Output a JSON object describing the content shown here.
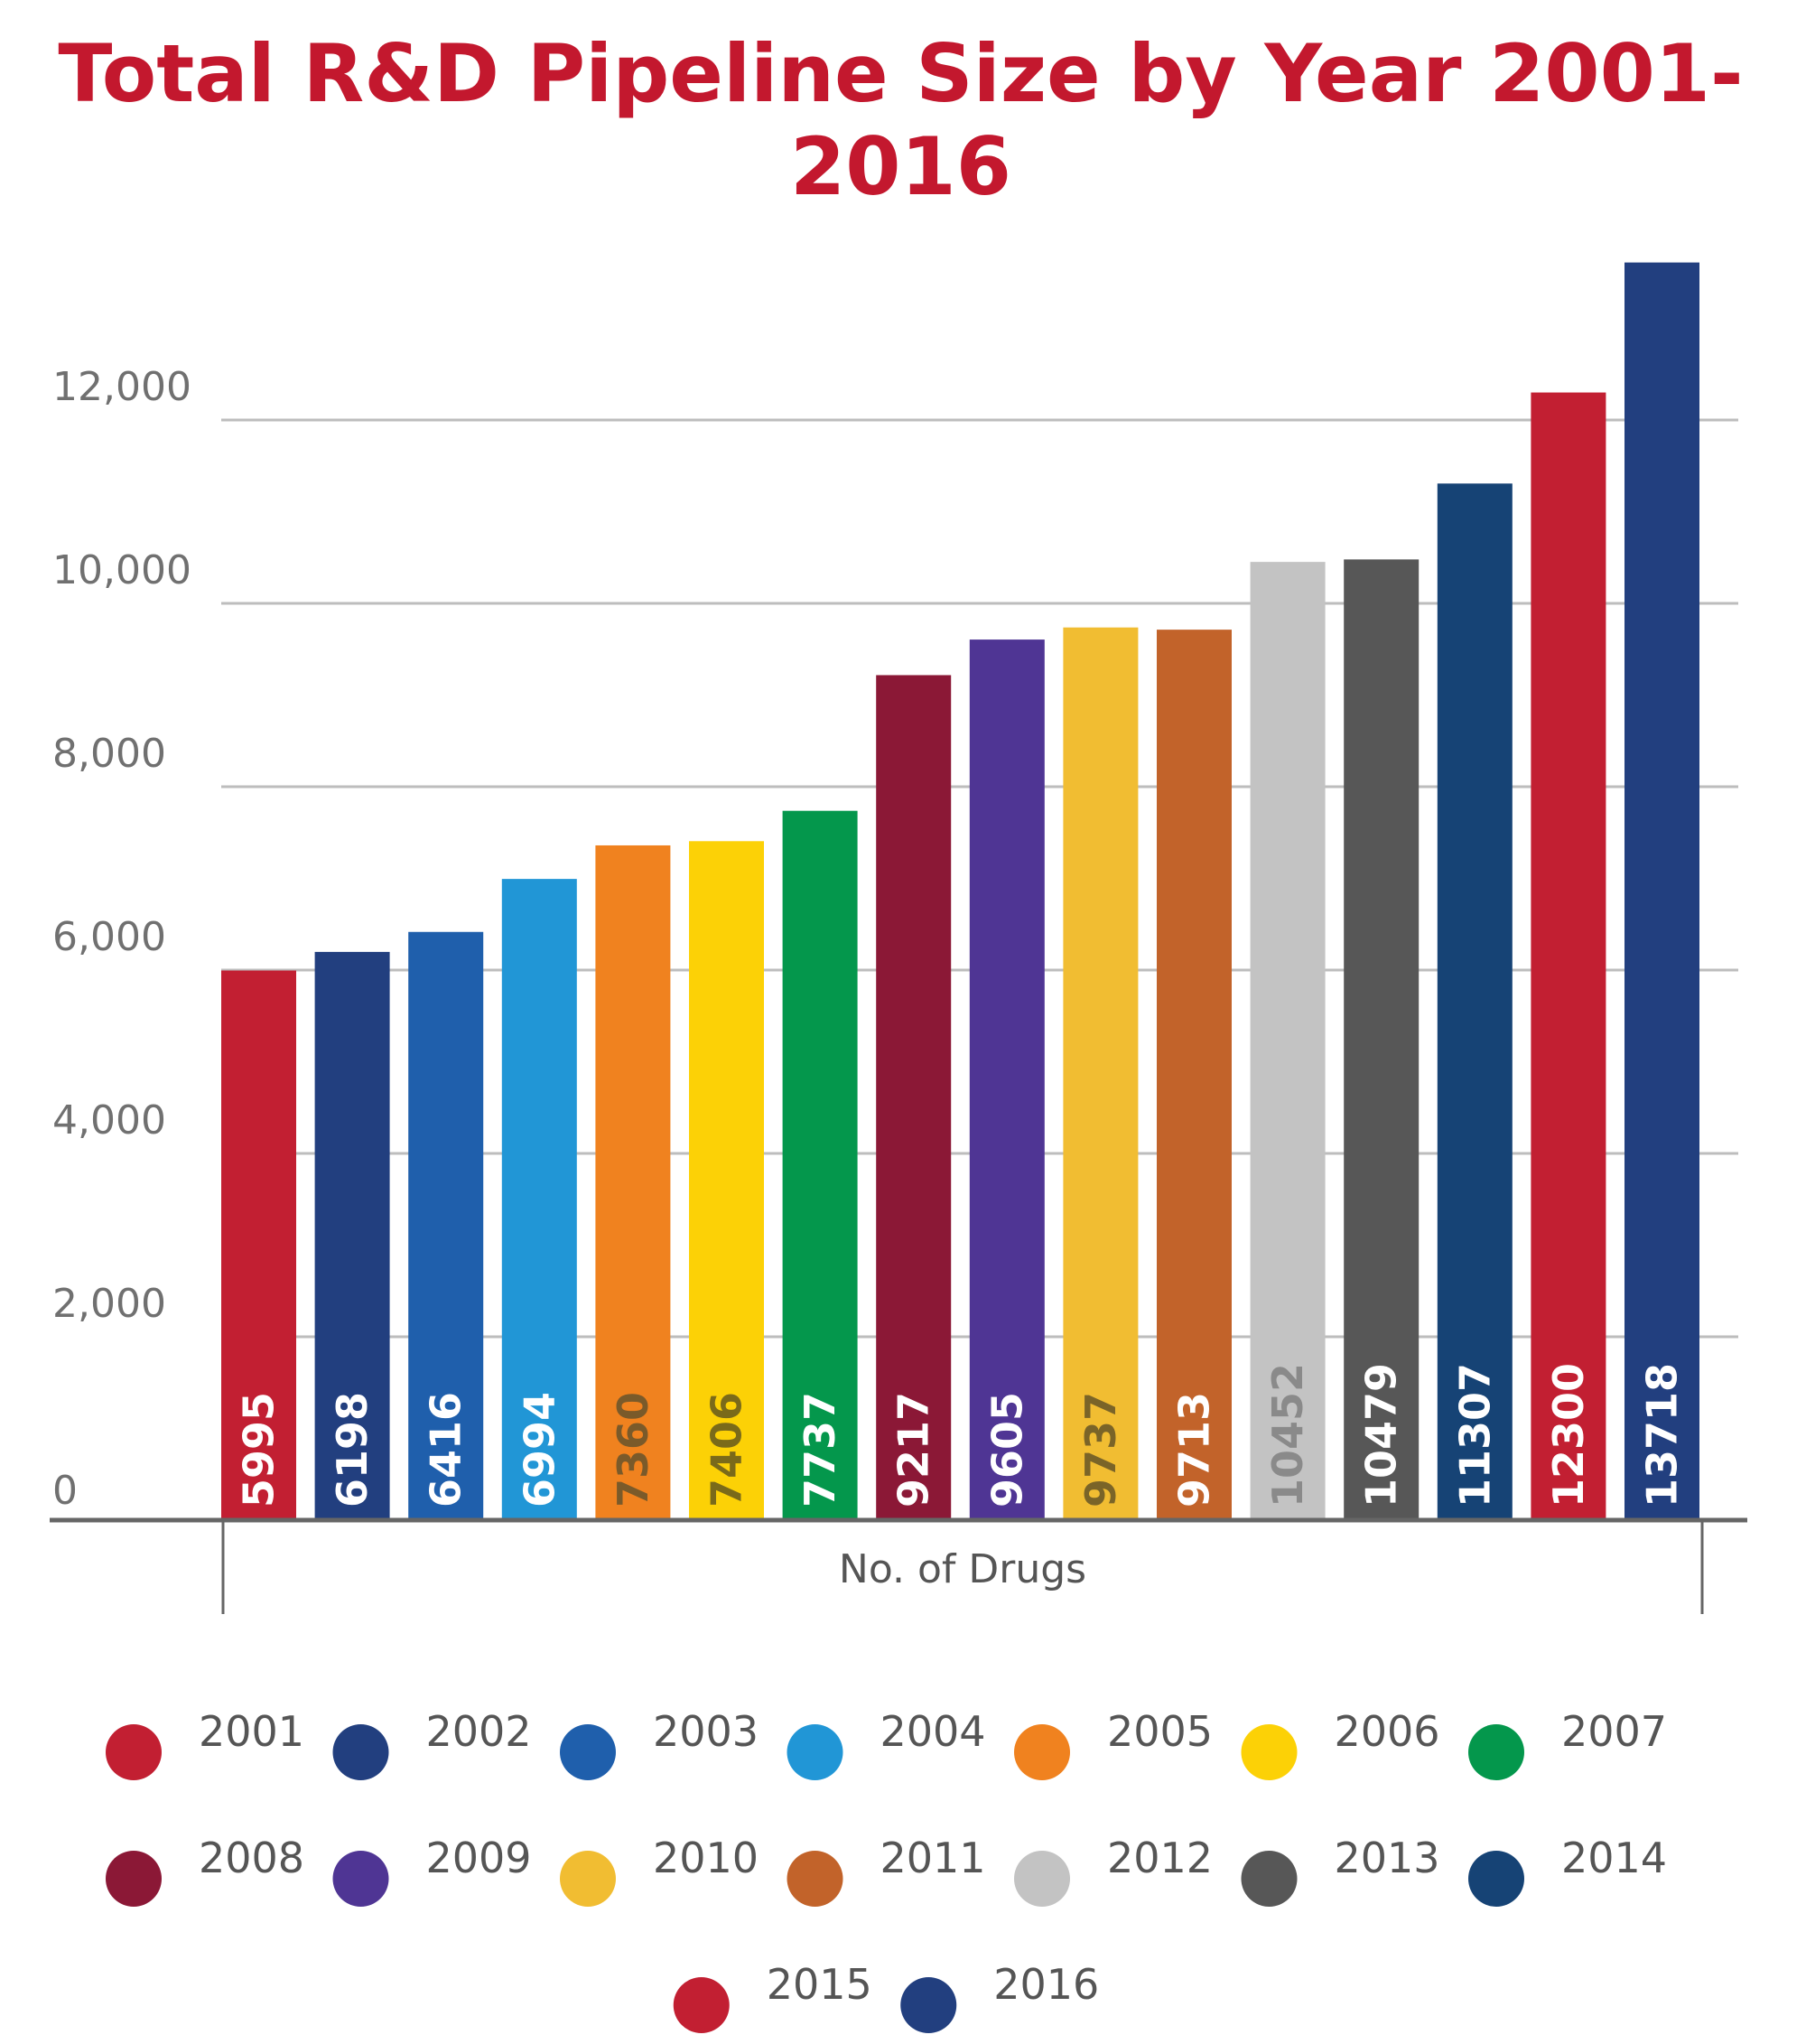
{
  "chart_data": {
    "type": "bar",
    "title": "Total R&D Pipeline Size by Year 2001-2016",
    "xlabel": "No. of Drugs",
    "ylabel": "",
    "ylim": [
      0,
      14000
    ],
    "yticks": [
      0,
      2000,
      4000,
      6000,
      8000,
      10000,
      12000
    ],
    "ytick_labels": [
      "0",
      "2,000",
      "4,000",
      "6,000",
      "8,000",
      "10,000",
      "12,000"
    ],
    "grid": true,
    "legend_position": "bottom",
    "categories": [
      "2001",
      "2002",
      "2003",
      "2004",
      "2005",
      "2006",
      "2007",
      "2008",
      "2009",
      "2010",
      "2011",
      "2012",
      "2013",
      "2014",
      "2015",
      "2016"
    ],
    "values": [
      5995,
      6198,
      6416,
      6994,
      7360,
      7406,
      7737,
      9217,
      9605,
      9737,
      9713,
      10452,
      10479,
      11307,
      12300,
      13718
    ],
    "data_labels": [
      "5995",
      "6198",
      "6416",
      "6994",
      "7360",
      "7406",
      "7737",
      "9217",
      "9605",
      "9737",
      "9713",
      "10452",
      "10479",
      "11307",
      "12300",
      "13718"
    ],
    "colors": [
      "#c21f32",
      "#223f7f",
      "#1f5fac",
      "#2196d6",
      "#f0821f",
      "#fcd106",
      "#04974c",
      "#8b1836",
      "#4f3594",
      "#f1bd32",
      "#c2632a",
      "#c3c3c3",
      "#575757",
      "#164375",
      "#c21f32",
      "#223f7f"
    ],
    "label_colors": [
      "#ffffff",
      "#ffffff",
      "#ffffff",
      "#ffffff",
      "#7a5a2a",
      "#7a6a1a",
      "#ffffff",
      "#ffffff",
      "#ffffff",
      "#7a6428",
      "#ffffff",
      "#8a8a8a",
      "#ffffff",
      "#ffffff",
      "#ffffff",
      "#ffffff"
    ]
  }
}
